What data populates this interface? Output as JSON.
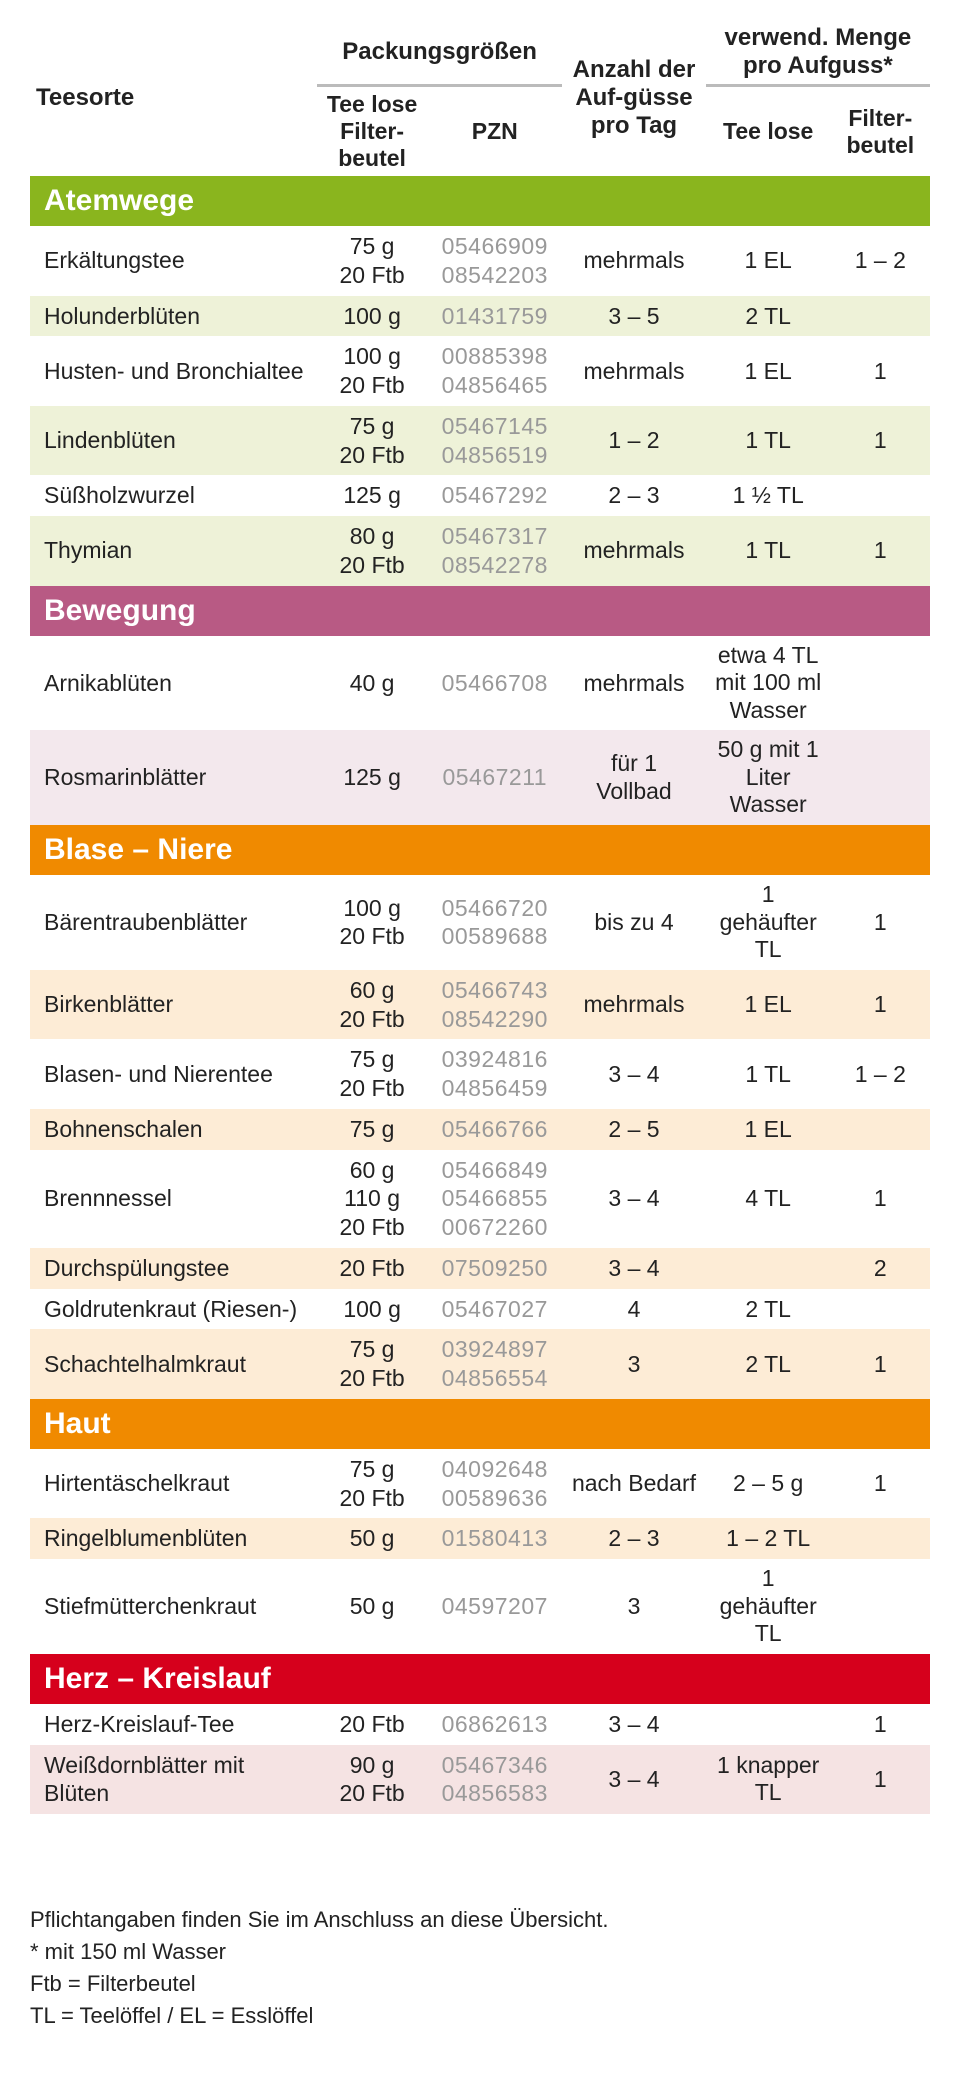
{
  "headers": {
    "teesorte": "Teesorte",
    "packungsgroessen": "Packungsgrößen",
    "anzahl": "Anzahl der Auf-güsse pro Tag",
    "verwend": "verwend. Menge pro Aufguss*",
    "tee_lose_filterbeutel": "Tee lose Filter-beutel",
    "pzn": "PZN",
    "tee_lose": "Tee lose",
    "filterbeutel": "Filter-beutel"
  },
  "sections": [
    {
      "title": "Atemwege",
      "bg": "#8ab51e",
      "alt": "#eef2d8",
      "rows": [
        {
          "name": "Erkältungstee",
          "pack": [
            "75 g",
            "20 Ftb"
          ],
          "pzn": [
            "05466909",
            "08542203"
          ],
          "anz": "mehrmals",
          "lose": "1 EL",
          "fb": "1 – 2"
        },
        {
          "name": "Holunderblüten",
          "pack": [
            "100 g"
          ],
          "pzn": [
            "01431759"
          ],
          "anz": "3 – 5",
          "lose": "2 TL",
          "fb": ""
        },
        {
          "name": "Husten- und Bronchialtee",
          "pack": [
            "100 g",
            "20 Ftb"
          ],
          "pzn": [
            "00885398",
            "04856465"
          ],
          "anz": "mehrmals",
          "lose": "1 EL",
          "fb": "1"
        },
        {
          "name": "Lindenblüten",
          "pack": [
            "75 g",
            "20 Ftb"
          ],
          "pzn": [
            "05467145",
            "04856519"
          ],
          "anz": "1 – 2",
          "lose": "1 TL",
          "fb": "1"
        },
        {
          "name": "Süßholzwurzel",
          "pack": [
            "125 g"
          ],
          "pzn": [
            "05467292"
          ],
          "anz": "2 – 3",
          "lose": "1 ½ TL",
          "fb": ""
        },
        {
          "name": "Thymian",
          "pack": [
            "80 g",
            "20 Ftb"
          ],
          "pzn": [
            "05467317",
            "08542278"
          ],
          "anz": "mehrmals",
          "lose": "1 TL",
          "fb": "1"
        }
      ]
    },
    {
      "title": "Bewegung",
      "bg": "#b85a84",
      "alt": "#f3e8ed",
      "rows": [
        {
          "name": "Arnikablüten",
          "pack": [
            "40 g"
          ],
          "pzn": [
            "05466708"
          ],
          "anz": "mehrmals",
          "lose": "etwa 4 TL mit 100 ml Wasser",
          "fb": ""
        },
        {
          "name": "Rosmarinblätter",
          "pack": [
            "125 g"
          ],
          "pzn": [
            "05467211"
          ],
          "anz": "für 1 Vollbad",
          "lose": "50 g mit 1 Liter Wasser",
          "fb": ""
        }
      ]
    },
    {
      "title": "Blase – Niere",
      "bg": "#f08a00",
      "alt": "#fdecd6",
      "rows": [
        {
          "name": "Bärentraubenblätter",
          "pack": [
            "100 g",
            "20 Ftb"
          ],
          "pzn": [
            "05466720",
            "00589688"
          ],
          "anz": "bis zu 4",
          "lose": "1 gehäufter TL",
          "fb": "1"
        },
        {
          "name": "Birkenblätter",
          "pack": [
            "60 g",
            "20 Ftb"
          ],
          "pzn": [
            "05466743",
            "08542290"
          ],
          "anz": "mehrmals",
          "lose": "1 EL",
          "fb": "1"
        },
        {
          "name": "Blasen- und Nierentee",
          "pack": [
            "75 g",
            "20 Ftb"
          ],
          "pzn": [
            "03924816",
            "04856459"
          ],
          "anz": "3 – 4",
          "lose": "1 TL",
          "fb": "1 – 2"
        },
        {
          "name": "Bohnenschalen",
          "pack": [
            "75 g"
          ],
          "pzn": [
            "05466766"
          ],
          "anz": "2 – 5",
          "lose": "1 EL",
          "fb": ""
        },
        {
          "name": "Brennnessel",
          "pack": [
            "60 g",
            "110 g",
            "20 Ftb"
          ],
          "pzn": [
            "05466849",
            "05466855",
            "00672260"
          ],
          "anz": "3 – 4",
          "lose": "4 TL",
          "fb": "1"
        },
        {
          "name": "Durchspülungstee",
          "pack": [
            "20 Ftb"
          ],
          "pzn": [
            "07509250"
          ],
          "anz": "3 – 4",
          "lose": "",
          "fb": "2"
        },
        {
          "name": "Goldrutenkraut (Riesen-)",
          "pack": [
            "100 g"
          ],
          "pzn": [
            "05467027"
          ],
          "anz": "4",
          "lose": "2 TL",
          "fb": ""
        },
        {
          "name": "Schachtelhalmkraut",
          "pack": [
            "75 g",
            "20 Ftb"
          ],
          "pzn": [
            "03924897",
            "04856554"
          ],
          "anz": "3",
          "lose": "2 TL",
          "fb": "1"
        }
      ]
    },
    {
      "title": "Haut",
      "bg": "#f08a00",
      "alt": "#fdecd6",
      "rows": [
        {
          "name": "Hirtentäschelkraut",
          "pack": [
            "75 g",
            "20 Ftb"
          ],
          "pzn": [
            "04092648",
            "00589636"
          ],
          "anz": "nach Bedarf",
          "lose": "2 – 5 g",
          "fb": "1"
        },
        {
          "name": "Ringelblumenblüten",
          "pack": [
            "50 g"
          ],
          "pzn": [
            "01580413"
          ],
          "anz": "2 – 3",
          "lose": "1 – 2 TL",
          "fb": ""
        },
        {
          "name": "Stiefmütterchenkraut",
          "pack": [
            "50 g"
          ],
          "pzn": [
            "04597207"
          ],
          "anz": "3",
          "lose": "1 gehäufter TL",
          "fb": ""
        }
      ]
    },
    {
      "title": "Herz – Kreislauf",
      "bg": "#d6001c",
      "alt": "#f5e3e3",
      "rows": [
        {
          "name": "Herz-Kreislauf-Tee",
          "pack": [
            "20 Ftb"
          ],
          "pzn": [
            "06862613"
          ],
          "anz": "3 – 4",
          "lose": "",
          "fb": "1"
        },
        {
          "name": "Weißdornblätter mit Blüten",
          "pack": [
            "90 g",
            "20 Ftb"
          ],
          "pzn": [
            "05467346",
            "04856583"
          ],
          "anz": "3 – 4",
          "lose": "1 knapper TL",
          "fb": "1"
        }
      ]
    }
  ],
  "footer": {
    "l1": "Pflichtangaben finden Sie im Anschluss an diese Übersicht.",
    "l2": "* mit 150 ml Wasser",
    "l3": "Ftb = Filterbeutel",
    "l4": "TL = Teelöffel / EL = Esslöffel"
  },
  "colors": {
    "header_white": "#ffffff"
  }
}
